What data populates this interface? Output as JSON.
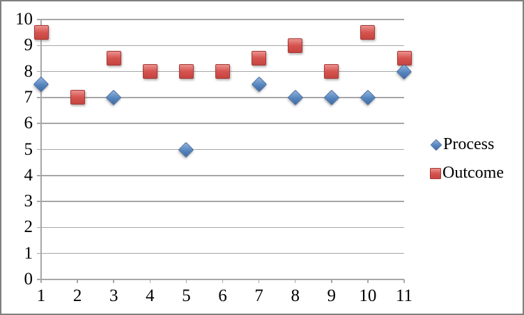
{
  "chart_data": {
    "type": "scatter",
    "title": "",
    "xlabel": "",
    "ylabel": "",
    "x": [
      1,
      2,
      3,
      4,
      5,
      6,
      7,
      8,
      9,
      10,
      11
    ],
    "series": [
      {
        "name": "Process",
        "marker": "diamond",
        "color": "#4F81BD",
        "border_color": "#3A639B",
        "values": [
          7.5,
          null,
          7,
          null,
          5,
          null,
          7.5,
          7,
          7,
          7,
          8
        ]
      },
      {
        "name": "Outcome",
        "marker": "square",
        "color": "#C0504D",
        "border_color": "#A63734",
        "values": [
          9.5,
          7,
          8.5,
          8,
          8,
          8,
          8.5,
          9,
          8,
          9.5,
          8.5
        ]
      }
    ],
    "xlim": [
      1,
      11
    ],
    "ylim": [
      0,
      10
    ],
    "x_ticks": [
      1,
      2,
      3,
      4,
      5,
      6,
      7,
      8,
      9,
      10,
      11
    ],
    "y_ticks": [
      0,
      1,
      2,
      3,
      4,
      5,
      6,
      7,
      8,
      9,
      10
    ],
    "grid": "horizontal",
    "gridline_color": "#A6A6A6",
    "legend_position": "right",
    "frame_border_color": "#7F7F7F",
    "background_color": "#FFFFFF"
  }
}
